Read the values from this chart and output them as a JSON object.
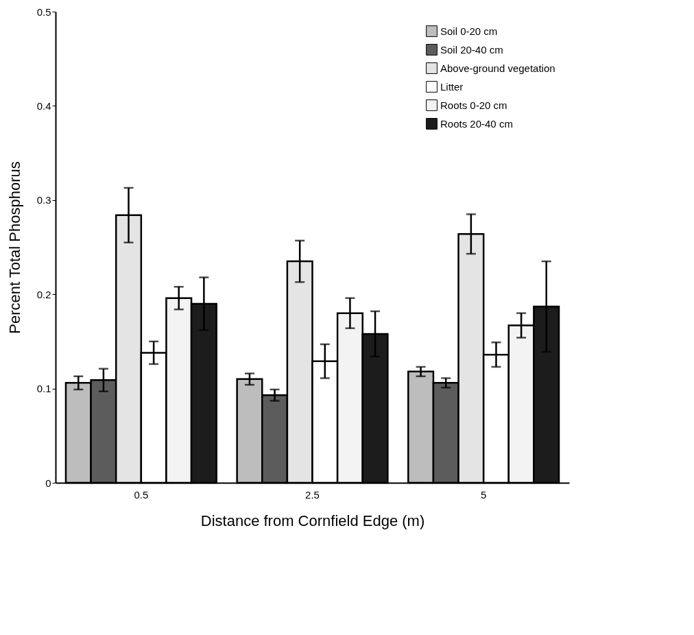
{
  "chart_data": {
    "type": "bar",
    "xlabel": "Distance from Cornfield Edge (m)",
    "ylabel": "Percent Total Phosphorus",
    "categories": [
      "0.5",
      "2.5",
      "5"
    ],
    "series": [
      {
        "name": "Soil 0-20 cm",
        "color": "#bdbdbd",
        "values": [
          0.106,
          0.11,
          0.118
        ],
        "errors": [
          0.007,
          0.006,
          0.005
        ]
      },
      {
        "name": "Soil 20-40 cm",
        "color": "#5c5c5c",
        "values": [
          0.109,
          0.093,
          0.106
        ],
        "errors": [
          0.012,
          0.006,
          0.005
        ]
      },
      {
        "name": "Above-ground vegetation",
        "color": "#e4e4e4",
        "values": [
          0.284,
          0.235,
          0.264
        ],
        "errors": [
          0.029,
          0.022,
          0.021
        ]
      },
      {
        "name": "Litter",
        "color": "#ffffff",
        "values": [
          0.138,
          0.129,
          0.136
        ],
        "errors": [
          0.012,
          0.018,
          0.013
        ]
      },
      {
        "name": "Roots 0-20 cm",
        "color": "#f3f3f3",
        "values": [
          0.196,
          0.18,
          0.167
        ],
        "errors": [
          0.012,
          0.016,
          0.013
        ]
      },
      {
        "name": "Roots 20-40 cm",
        "color": "#1c1c1c",
        "values": [
          0.19,
          0.158,
          0.187
        ],
        "errors": [
          0.028,
          0.024,
          0.048
        ]
      }
    ],
    "ylim": [
      0,
      0.5
    ],
    "yticks": [
      0,
      0.1,
      0.2,
      0.3,
      0.4,
      0.5
    ],
    "grid": false,
    "legend": "top right"
  }
}
